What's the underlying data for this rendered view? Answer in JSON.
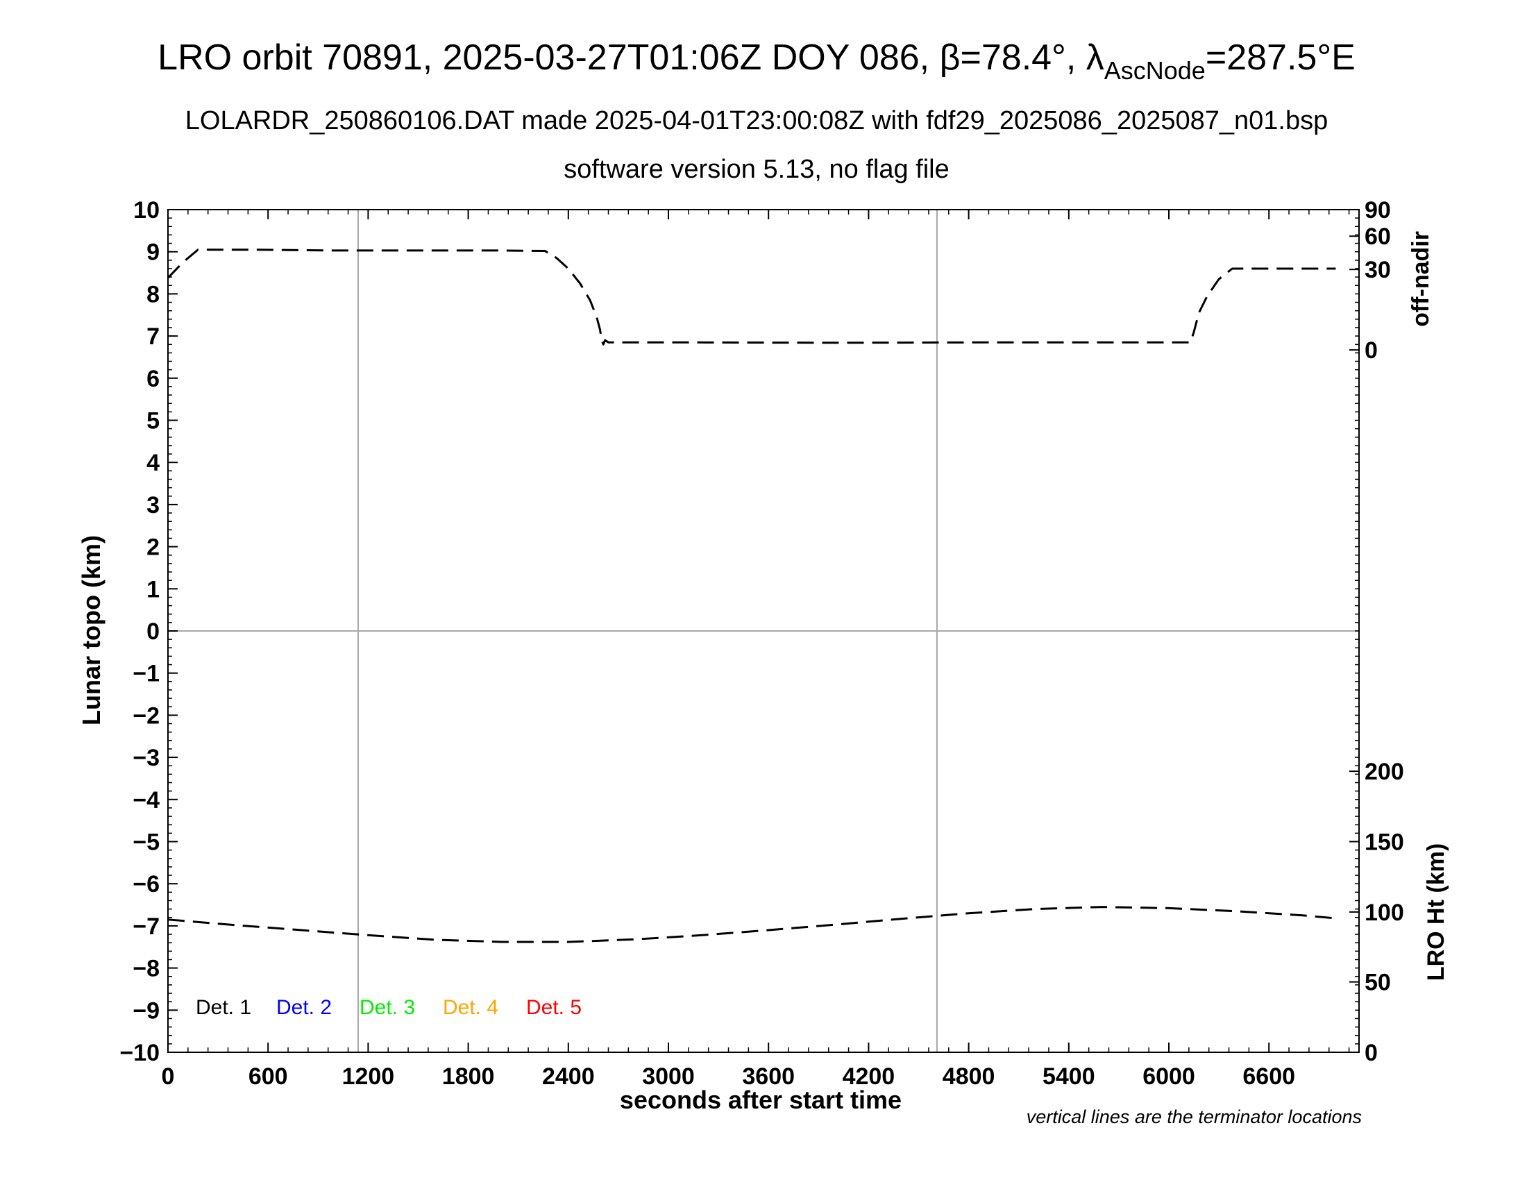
{
  "title_parts": {
    "prefix": "LRO orbit 70891, 2025-03-27T01:06Z DOY 086, β=78.4°, λ",
    "subscript": "AscNode",
    "suffix": "=287.5°E"
  },
  "subtitle": "LOLARDR_250860106.DAT made 2025-04-01T23:00:08Z with fdf29_2025086_2025087_n01.bsp",
  "subtitle2": "software version 5.13, no flag file",
  "footnote": "vertical lines are the terminator locations",
  "chart_data": {
    "type": "line",
    "xlabel": "seconds after start time",
    "ylabel_left": "Lunar topo (km)",
    "ylabel_right_top": "off-nadir",
    "ylabel_right_bottom": "LRO Ht (km)",
    "xlim": [
      0,
      7140
    ],
    "ylim": [
      -10,
      10
    ],
    "x_ticks": [
      0,
      600,
      1200,
      1800,
      2400,
      3000,
      3600,
      4200,
      4800,
      5400,
      6000,
      6600
    ],
    "y_ticks": [
      10,
      9,
      8,
      7,
      6,
      5,
      4,
      3,
      2,
      1,
      0,
      -1,
      -2,
      -3,
      -4,
      -5,
      -6,
      -7,
      -8,
      -9,
      -10
    ],
    "y_tick_labels": [
      "10",
      "9",
      "8",
      "7",
      "6",
      "5",
      "4",
      "3",
      "2",
      "1",
      "0",
      "−1",
      "−2",
      "−3",
      "−4",
      "−5",
      "−6",
      "−7",
      "−8",
      "−9",
      "−10"
    ],
    "right_top_ticks": [
      {
        "label": "90",
        "topo": 10
      },
      {
        "label": "60",
        "topo": 9.37
      },
      {
        "label": "30",
        "topo": 8.58
      },
      {
        "label": "0",
        "topo": 6.67
      }
    ],
    "right_bottom_ticks": [
      {
        "label": "200",
        "topo": -3.33
      },
      {
        "label": "150",
        "topo": -5.0
      },
      {
        "label": "100",
        "topo": -6.67
      },
      {
        "label": "50",
        "topo": -8.33
      },
      {
        "label": "0",
        "topo": -10
      }
    ],
    "terminators": [
      1140,
      4610
    ],
    "grid_y": [
      0
    ],
    "series": [
      {
        "key": "off_nadir",
        "style": "dashed",
        "color": "#000000",
        "x": [
          0,
          90,
          180,
          500,
          1000,
          1500,
          2000,
          2260,
          2330,
          2400,
          2470,
          2530,
          2570,
          2590,
          2600,
          2610,
          2620,
          2640,
          3000,
          4000,
          5000,
          6000,
          6130,
          6150,
          6180,
          6230,
          6300,
          6380,
          6500,
          7000,
          7000
        ],
        "y": [
          8.38,
          8.75,
          9.05,
          9.05,
          9.03,
          9.03,
          9.03,
          9.02,
          8.85,
          8.6,
          8.25,
          7.85,
          7.45,
          7.15,
          6.9,
          6.8,
          6.9,
          6.85,
          6.85,
          6.84,
          6.85,
          6.85,
          6.85,
          7.1,
          7.55,
          7.95,
          8.35,
          8.6,
          8.6,
          8.6,
          8.6
        ]
      },
      {
        "key": "lro_height",
        "style": "dashed",
        "color": "#000000",
        "x": [
          0,
          400,
          800,
          1200,
          1600,
          2000,
          2400,
          2800,
          3200,
          3600,
          4000,
          4400,
          4800,
          5200,
          5600,
          6000,
          6400,
          6800,
          7000
        ],
        "y": [
          -6.85,
          -6.98,
          -7.1,
          -7.22,
          -7.33,
          -7.38,
          -7.38,
          -7.32,
          -7.22,
          -7.1,
          -6.97,
          -6.83,
          -6.7,
          -6.6,
          -6.55,
          -6.58,
          -6.65,
          -6.75,
          -6.82
        ]
      }
    ],
    "legend": {
      "placement": "bottom-left",
      "entries": [
        {
          "name": "Det. 1",
          "color": "#000000"
        },
        {
          "name": "Det. 2",
          "color": "#0000ff"
        },
        {
          "name": "Det. 3",
          "color": "#00ee00"
        },
        {
          "name": "Det. 4",
          "color": "#ffa500"
        },
        {
          "name": "Det. 5",
          "color": "#ff0000"
        }
      ]
    }
  }
}
